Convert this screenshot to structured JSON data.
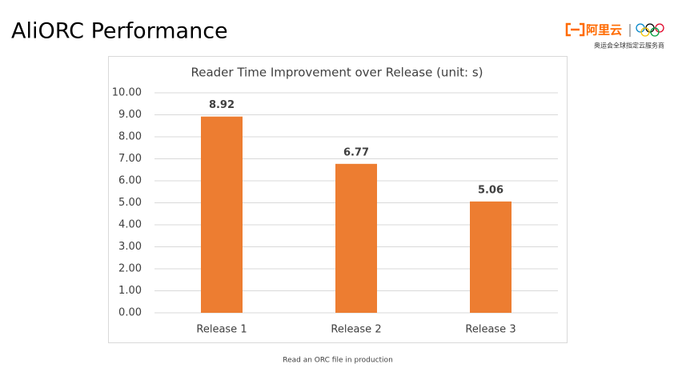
{
  "header": {
    "title": "AliORC Performance",
    "logo_text": "阿里云",
    "logo_subtitle": "奥运会全球指定云服务商"
  },
  "chart_data": {
    "type": "bar",
    "title": "Reader Time Improvement over Release (unit: s)",
    "categories": [
      "Release 1",
      "Release 2",
      "Release 3"
    ],
    "values": [
      8.92,
      6.77,
      5.06
    ],
    "color": "#ed7d31",
    "ylim": [
      0,
      10
    ],
    "yticks": [
      {
        "value": 0,
        "label": "0.00"
      },
      {
        "value": 1,
        "label": "1.00"
      },
      {
        "value": 2,
        "label": "2.00"
      },
      {
        "value": 3,
        "label": "3.00"
      },
      {
        "value": 4,
        "label": "4.00"
      },
      {
        "value": 5,
        "label": "5.00"
      },
      {
        "value": 6,
        "label": "6.00"
      },
      {
        "value": 7,
        "label": "7.00"
      },
      {
        "value": 8,
        "label": "8.00"
      },
      {
        "value": 9,
        "label": "9.00"
      },
      {
        "value": 10,
        "label": "10.00"
      }
    ],
    "grid": true
  },
  "caption": "Read an ORC file in production"
}
